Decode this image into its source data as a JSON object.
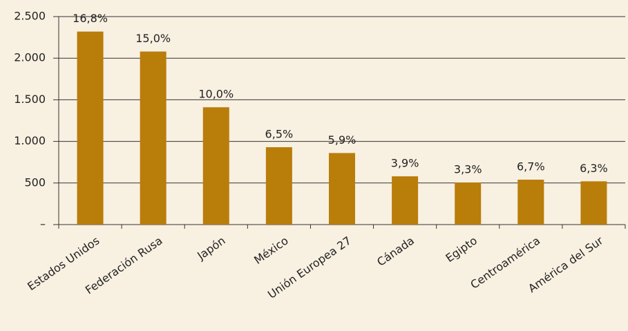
{
  "chart_data": {
    "type": "bar",
    "categories": [
      "Estados Unidos",
      "Federación Rusa",
      "Japón",
      "México",
      "Unión Europea 27",
      "Cánada",
      "Egipto",
      "Centroamérica",
      "América del Sur"
    ],
    "values": [
      2320,
      2080,
      1410,
      930,
      860,
      580,
      505,
      540,
      520
    ],
    "annotations": [
      "16,8%",
      "15,0%",
      "10,0%",
      "6,5%",
      "5,9%",
      "3,9%",
      "3,3%",
      "6,7%",
      "6,3%"
    ],
    "color": "#b97d0a",
    "ylim": [
      0,
      2500
    ],
    "yticks": [
      {
        "value": 0,
        "label": "–"
      },
      500,
      {
        "value": 1000,
        "label": "1.000"
      },
      {
        "value": 1500,
        "label": "1.500"
      },
      {
        "value": 2000,
        "label": "2.000"
      },
      {
        "value": 2500,
        "label": "2.500"
      }
    ],
    "grid": true
  }
}
